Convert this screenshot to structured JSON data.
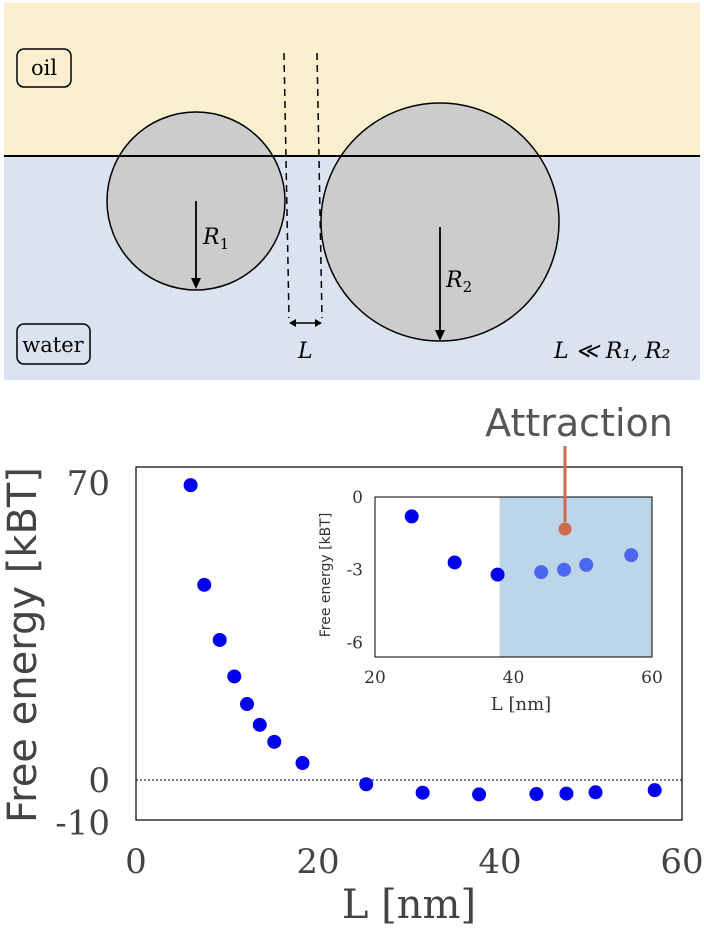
{
  "schematic": {
    "oil_label": "oil",
    "water_label": "water",
    "r1_label": "R",
    "r1_sub": "1",
    "r2_label": "R",
    "r2_sub": "2",
    "gap_label": "L",
    "condition_label": "L ≪ R₁, R₂",
    "colors": {
      "oil": "#faefcf",
      "water": "#dce3f0",
      "particle": "#cccccc"
    }
  },
  "annotation": {
    "text": "Attraction",
    "color": "#cc6a4f"
  },
  "chart_data": [
    {
      "type": "scatter",
      "title": "",
      "xlabel": "L [nm]",
      "ylabel": "Free energy [kBT]",
      "xlim": [
        0,
        60
      ],
      "ylim": [
        -10,
        70
      ],
      "x_ticks": [
        "0",
        "20",
        "40",
        "60"
      ],
      "y_ticks": [
        "70",
        "0",
        "-10"
      ],
      "x_tick_values": [
        0,
        20,
        40,
        60
      ],
      "y_tick_values": [
        70,
        0,
        -10
      ],
      "reference_line_y": 0,
      "marker_color": "#0000ee",
      "series": [
        {
          "x": [
            6,
            7.5,
            9.2,
            10.8,
            12.2,
            13.6,
            15.2,
            18.3,
            25.3,
            31.5,
            37.7,
            44,
            47.3,
            50.5,
            57
          ],
          "y": [
            69.5,
            46,
            33,
            24.4,
            17.9,
            13,
            9,
            4,
            -1,
            -3,
            -3.4,
            -3.3,
            -3.2,
            -2.9,
            -2.4
          ]
        }
      ]
    },
    {
      "type": "scatter",
      "title": "",
      "xlabel": "L [nm]",
      "ylabel": "Free energy [kBT]",
      "xlim": [
        20,
        60
      ],
      "ylim": [
        -6.6,
        0
      ],
      "x_ticks": [
        "20",
        "40",
        "60"
      ],
      "y_ticks": [
        "0",
        "-3",
        "-6"
      ],
      "x_tick_values": [
        20,
        40,
        60
      ],
      "y_tick_values": [
        0,
        -3,
        -6
      ],
      "shaded_region_x": [
        38,
        60
      ],
      "shade_color": "#bcd5e8",
      "marker_color": "#0000ee",
      "highlight_marker_color": "#4c66ee",
      "series": [
        {
          "x": [
            25.3,
            31.5,
            37.7,
            44,
            47.3,
            50.5,
            57
          ],
          "y": [
            -0.8,
            -2.7,
            -3.2,
            -3.1,
            -3.0,
            -2.8,
            -2.4
          ]
        }
      ]
    }
  ]
}
